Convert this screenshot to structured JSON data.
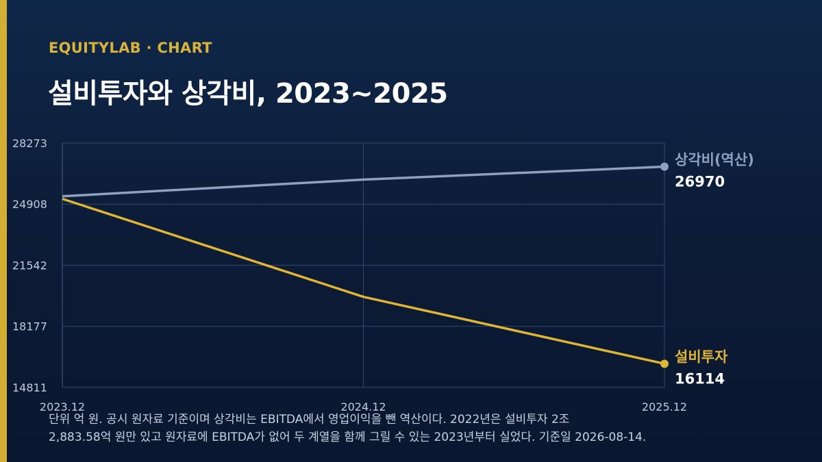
{
  "header": {
    "brand": "EQUITYLAB · CHART",
    "title": "설비투자와 상각비, 2023~2025"
  },
  "note": {
    "line1": "단위 억 원. 공시 원자료 기준이며 상각비는 EBITDA에서 영업이익을 뺀 역산이다. 2022년은 설비투자 2조",
    "line2": "2,883.58억 원만 있고 원자료에 EBITDA가 없어 두 계열을 함께 그릴 수 있는 2023년부터 실었다. 기준일 2026-08-14."
  },
  "chart_data": {
    "type": "line",
    "title": "설비투자와 상각비, 2023~2025",
    "x": [
      "2023.12",
      "2024.12",
      "2025.12"
    ],
    "ylim": [
      14811,
      28273
    ],
    "yticks": [
      14811,
      18177,
      21542,
      24908,
      28273
    ],
    "grid": true,
    "legend": "end-of-line labels",
    "series": [
      {
        "name": "상각비(역산)",
        "values": [
          25340,
          26260,
          26970
        ],
        "color": "#8ea1c1",
        "end_label": "26970"
      },
      {
        "name": "설비투자",
        "values": [
          25200,
          19800,
          16114
        ],
        "color": "#e0b534",
        "end_label": "16114"
      }
    ]
  }
}
